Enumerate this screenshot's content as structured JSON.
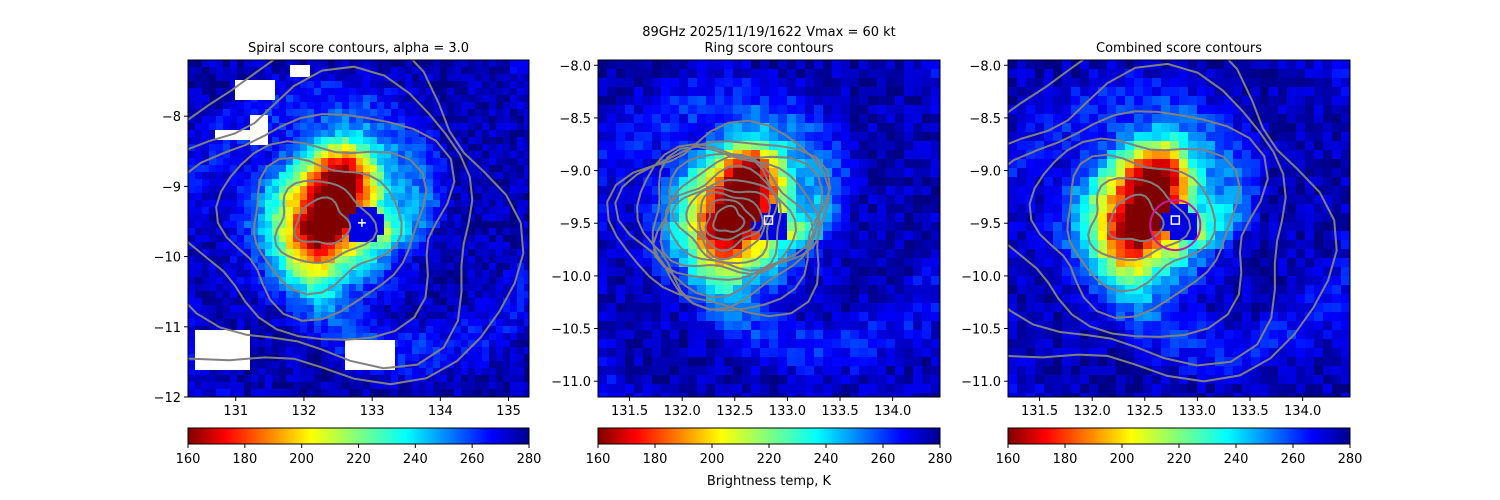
{
  "suptitle_line1": "89GHz  2025/11/19/1622    Vmax = 60 kt",
  "colorbar_label": "Brightness temp, K",
  "colormap": "jet_r",
  "chart_data": [
    {
      "type": "heatmap",
      "title": "Spiral score contours, alpha =  3.0",
      "xlim": [
        130.3,
        135.3
      ],
      "ylim": [
        -12,
        -7.2
      ],
      "xticks": [
        131,
        132,
        133,
        134,
        135
      ],
      "yticks": [
        -8,
        -9,
        -10,
        -11,
        -12
      ],
      "center_marker": {
        "symbol": "plus",
        "x": 132.85,
        "y": -9.52
      },
      "colorbar": {
        "min": 160,
        "max": 280,
        "ticks": [
          160,
          180,
          200,
          220,
          240,
          260,
          280
        ]
      }
    },
    {
      "type": "heatmap",
      "title": "Ring score contours",
      "xlim": [
        131.2,
        134.45
      ],
      "ylim": [
        -11.15,
        -7.95
      ],
      "xticks": [
        131.5,
        132.0,
        132.5,
        133.0,
        133.5,
        134.0
      ],
      "yticks": [
        -8.0,
        -8.5,
        -9.0,
        -9.5,
        -10.0,
        -10.5,
        -11.0
      ],
      "center_marker": {
        "symbol": "square",
        "x": 132.82,
        "y": -9.47
      },
      "colorbar": {
        "min": 160,
        "max": 280,
        "ticks": [
          160,
          180,
          200,
          220,
          240,
          260,
          280
        ]
      }
    },
    {
      "type": "heatmap",
      "title": "Combined score contours",
      "xlim": [
        131.2,
        134.45
      ],
      "ylim": [
        -11.15,
        -7.95
      ],
      "xticks": [
        131.5,
        132.0,
        132.5,
        133.0,
        133.5,
        134.0
      ],
      "yticks": [
        -8.0,
        -8.5,
        -9.0,
        -9.5,
        -10.0,
        -10.5,
        -11.0
      ],
      "center_marker": {
        "symbol": "square",
        "x": 132.79,
        "y": -9.47
      },
      "colorbar": {
        "min": 160,
        "max": 280,
        "ticks": [
          160,
          180,
          200,
          220,
          240,
          260,
          280
        ]
      }
    }
  ]
}
